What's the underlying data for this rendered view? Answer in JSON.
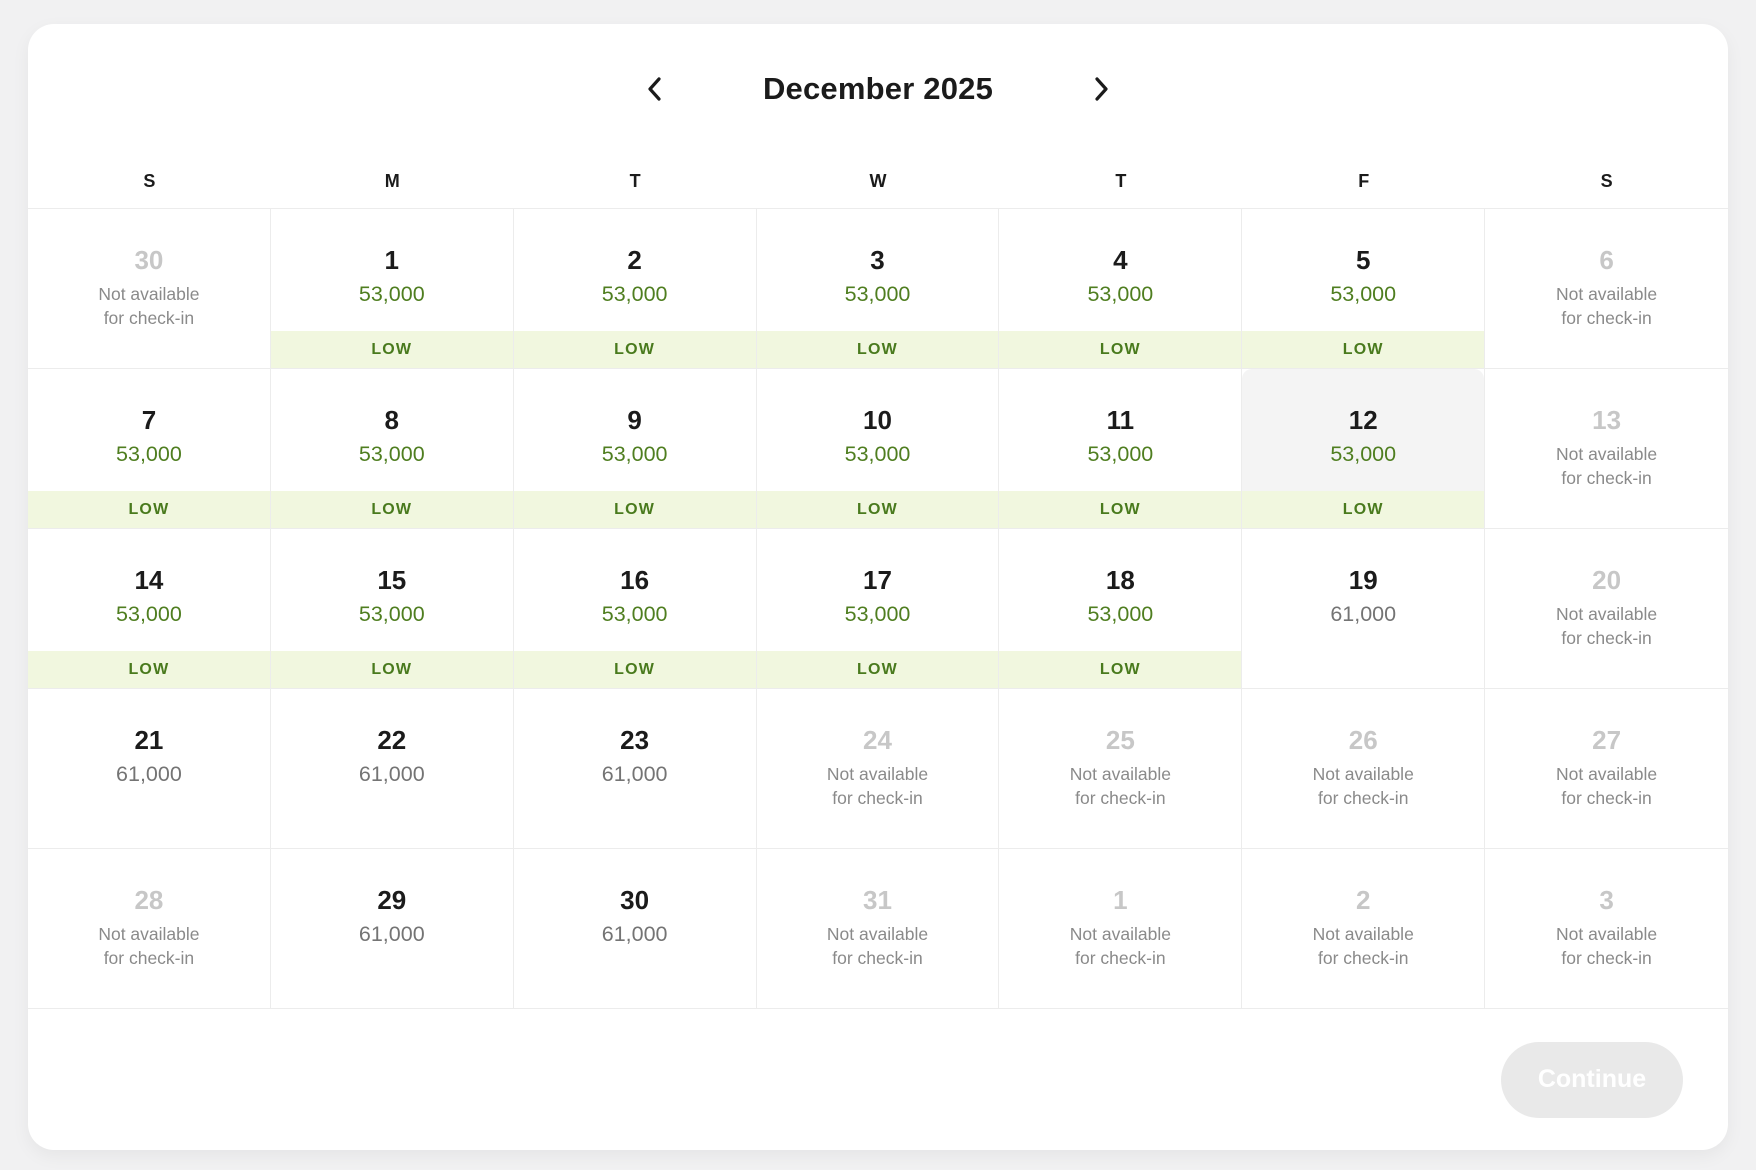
{
  "header": {
    "title": "December 2025",
    "prev_button": "previous month",
    "next_button": "next month"
  },
  "weekdays": [
    "S",
    "M",
    "T",
    "W",
    "T",
    "F",
    "S"
  ],
  "labels": {
    "not_available_line1": "Not available",
    "not_available_line2": "for check-in",
    "low_badge": "LOW"
  },
  "footer": {
    "continue_label": "Continue"
  },
  "colors": {
    "price_low_green": "#4f7e20",
    "price_standard_gray": "#747474",
    "low_badge_bg": "#f1f7df",
    "low_badge_text": "#497a1d",
    "highlighted_cell_bg": "#f4f4f4",
    "unavailable_day_number": "#c7c7c7",
    "grid_border": "#ececec",
    "page_background": "#f1f1f2",
    "continue_button_bg": "#e9e9e9"
  },
  "weeks": [
    [
      {
        "day": "30",
        "context": "prev",
        "type": "unavailable"
      },
      {
        "day": "1",
        "type": "available",
        "price": "53,000",
        "price_color": "green",
        "low": true
      },
      {
        "day": "2",
        "type": "available",
        "price": "53,000",
        "price_color": "green",
        "low": true
      },
      {
        "day": "3",
        "type": "available",
        "price": "53,000",
        "price_color": "green",
        "low": true
      },
      {
        "day": "4",
        "type": "available",
        "price": "53,000",
        "price_color": "green",
        "low": true
      },
      {
        "day": "5",
        "type": "available",
        "price": "53,000",
        "price_color": "green",
        "low": true
      },
      {
        "day": "6",
        "type": "unavailable"
      }
    ],
    [
      {
        "day": "7",
        "type": "available",
        "price": "53,000",
        "price_color": "green",
        "low": true
      },
      {
        "day": "8",
        "type": "available",
        "price": "53,000",
        "price_color": "green",
        "low": true
      },
      {
        "day": "9",
        "type": "available",
        "price": "53,000",
        "price_color": "green",
        "low": true
      },
      {
        "day": "10",
        "type": "available",
        "price": "53,000",
        "price_color": "green",
        "low": true
      },
      {
        "day": "11",
        "type": "available",
        "price": "53,000",
        "price_color": "green",
        "low": true
      },
      {
        "day": "12",
        "type": "available",
        "price": "53,000",
        "price_color": "green",
        "low": true,
        "highlighted": true
      },
      {
        "day": "13",
        "type": "unavailable"
      }
    ],
    [
      {
        "day": "14",
        "type": "available",
        "price": "53,000",
        "price_color": "green",
        "low": true
      },
      {
        "day": "15",
        "type": "available",
        "price": "53,000",
        "price_color": "green",
        "low": true
      },
      {
        "day": "16",
        "type": "available",
        "price": "53,000",
        "price_color": "green",
        "low": true
      },
      {
        "day": "17",
        "type": "available",
        "price": "53,000",
        "price_color": "green",
        "low": true
      },
      {
        "day": "18",
        "type": "available",
        "price": "53,000",
        "price_color": "green",
        "low": true
      },
      {
        "day": "19",
        "type": "available",
        "price": "61,000",
        "price_color": "gray",
        "low": false
      },
      {
        "day": "20",
        "type": "unavailable"
      }
    ],
    [
      {
        "day": "21",
        "type": "available",
        "price": "61,000",
        "price_color": "gray",
        "low": false
      },
      {
        "day": "22",
        "type": "available",
        "price": "61,000",
        "price_color": "gray",
        "low": false
      },
      {
        "day": "23",
        "type": "available",
        "price": "61,000",
        "price_color": "gray",
        "low": false
      },
      {
        "day": "24",
        "type": "unavailable"
      },
      {
        "day": "25",
        "type": "unavailable"
      },
      {
        "day": "26",
        "type": "unavailable"
      },
      {
        "day": "27",
        "type": "unavailable"
      }
    ],
    [
      {
        "day": "28",
        "type": "unavailable"
      },
      {
        "day": "29",
        "type": "available",
        "price": "61,000",
        "price_color": "gray",
        "low": false
      },
      {
        "day": "30",
        "type": "available",
        "price": "61,000",
        "price_color": "gray",
        "low": false
      },
      {
        "day": "31",
        "type": "unavailable"
      },
      {
        "day": "1",
        "context": "next",
        "type": "unavailable"
      },
      {
        "day": "2",
        "context": "next",
        "type": "unavailable"
      },
      {
        "day": "3",
        "context": "next",
        "type": "unavailable"
      }
    ]
  ]
}
